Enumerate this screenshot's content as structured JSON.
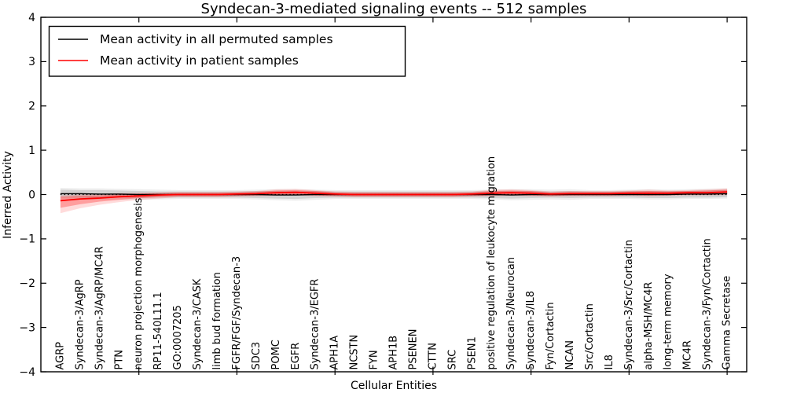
{
  "chart_data": {
    "type": "line",
    "title": "Syndecan-3-mediated signaling events -- 512 samples",
    "xlabel": "Cellular Entities",
    "ylabel": "Inferred Activity",
    "ylim": [
      -4,
      4
    ],
    "xlim": [
      0,
      36
    ],
    "yticks": [
      -4,
      -3,
      -2,
      -1,
      0,
      1,
      2,
      3,
      4
    ],
    "ytick_labels": [
      "−4",
      "−3",
      "−2",
      "−1",
      "0",
      "1",
      "2",
      "3",
      "4"
    ],
    "major_xticks": [
      5,
      10,
      15,
      20,
      25,
      30,
      35
    ],
    "grid": false,
    "legend_position": "upper left",
    "zero_line": {
      "y": 0,
      "style": "dotted",
      "color": "#000000"
    },
    "categories": [
      "AGRP",
      "Syndecan-3/AgRP",
      "Syndecan-3/AgRP/MC4R",
      "PTN",
      "neuron projection morphogenesis",
      "RP11-540L11.1",
      "GO:0007205",
      "Syndecan-3/CASK",
      "limb bud formation",
      "FGFR/FGF/Syndecan-3",
      "SDC3",
      "POMC",
      "EGFR",
      "Syndecan-3/EGFR",
      "APH1A",
      "NCSTN",
      "FYN",
      "APH1B",
      "PSENEN",
      "CTTN",
      "SRC",
      "PSEN1",
      "positive regulation of leukocyte migration",
      "Syndecan-3/Neurocan",
      "Syndecan-3/IL8",
      "Fyn/Cortactin",
      "NCAN",
      "Src/Cortactin",
      "IL8",
      "Syndecan-3/Src/Cortactin",
      "alpha-MSH/MC4R",
      "long-term memory",
      "MC4R",
      "Syndecan-3/Fyn/Cortactin",
      "Gamma Secretase"
    ],
    "series": [
      {
        "name": "Mean activity in all permuted samples",
        "color": "#000000",
        "values": [
          0.02,
          0.02,
          0.01,
          0.01,
          0.0,
          0.0,
          0.0,
          0.0,
          0.0,
          0.0,
          0.0,
          -0.01,
          -0.01,
          0.0,
          0.0,
          0.0,
          0.0,
          0.0,
          0.0,
          0.0,
          0.0,
          0.0,
          0.0,
          -0.01,
          0.0,
          0.0,
          0.0,
          0.0,
          0.0,
          0.0,
          0.0,
          0.0,
          0.01,
          0.01,
          0.02
        ],
        "band_inner": {
          "color": "#555555",
          "opacity": 0.18,
          "upper": [
            0.11,
            0.1,
            0.1,
            0.09,
            0.08,
            0.07,
            0.07,
            0.07,
            0.07,
            0.07,
            0.08,
            0.08,
            0.08,
            0.08,
            0.07,
            0.07,
            0.07,
            0.07,
            0.07,
            0.07,
            0.07,
            0.07,
            0.08,
            0.08,
            0.08,
            0.07,
            0.08,
            0.07,
            0.07,
            0.08,
            0.08,
            0.08,
            0.08,
            0.09,
            0.1
          ],
          "lower": [
            -0.07,
            -0.07,
            -0.08,
            -0.07,
            -0.08,
            -0.07,
            -0.07,
            -0.07,
            -0.07,
            -0.07,
            -0.08,
            -0.09,
            -0.1,
            -0.08,
            -0.07,
            -0.07,
            -0.07,
            -0.07,
            -0.07,
            -0.07,
            -0.07,
            -0.07,
            -0.08,
            -0.09,
            -0.08,
            -0.07,
            -0.08,
            -0.07,
            -0.07,
            -0.07,
            -0.08,
            -0.08,
            -0.07,
            -0.07,
            -0.06
          ]
        },
        "band_outer": {
          "color": "#555555",
          "opacity": 0.1,
          "upper": [
            0.15,
            0.14,
            0.14,
            0.13,
            0.12,
            0.11,
            0.1,
            0.1,
            0.1,
            0.1,
            0.11,
            0.12,
            0.12,
            0.11,
            0.1,
            0.1,
            0.1,
            0.1,
            0.1,
            0.1,
            0.1,
            0.1,
            0.11,
            0.12,
            0.12,
            0.11,
            0.12,
            0.1,
            0.1,
            0.11,
            0.12,
            0.11,
            0.12,
            0.13,
            0.14
          ],
          "lower": [
            -0.11,
            -0.11,
            -0.12,
            -0.11,
            -0.12,
            -0.11,
            -0.1,
            -0.1,
            -0.1,
            -0.1,
            -0.11,
            -0.13,
            -0.14,
            -0.12,
            -0.1,
            -0.1,
            -0.1,
            -0.1,
            -0.1,
            -0.1,
            -0.1,
            -0.1,
            -0.11,
            -0.13,
            -0.12,
            -0.11,
            -0.12,
            -0.1,
            -0.1,
            -0.1,
            -0.11,
            -0.11,
            -0.1,
            -0.1,
            -0.09
          ]
        }
      },
      {
        "name": "Mean activity in patient samples",
        "color": "#ff0000",
        "values": [
          -0.14,
          -0.1,
          -0.08,
          -0.05,
          -0.03,
          -0.01,
          0.0,
          0.0,
          0.0,
          0.01,
          0.02,
          0.04,
          0.05,
          0.03,
          0.01,
          0.0,
          0.0,
          0.0,
          0.0,
          0.0,
          0.0,
          0.01,
          0.03,
          0.04,
          0.03,
          0.01,
          0.02,
          0.02,
          0.02,
          0.03,
          0.03,
          0.03,
          0.04,
          0.04,
          0.06
        ],
        "band_inner": {
          "color": "#ff0000",
          "opacity": 0.28,
          "upper": [
            -0.05,
            -0.03,
            -0.02,
            0.0,
            0.02,
            0.03,
            0.04,
            0.04,
            0.04,
            0.05,
            0.06,
            0.09,
            0.1,
            0.08,
            0.05,
            0.04,
            0.04,
            0.04,
            0.04,
            0.04,
            0.04,
            0.05,
            0.08,
            0.09,
            0.08,
            0.05,
            0.06,
            0.06,
            0.06,
            0.07,
            0.08,
            0.07,
            0.08,
            0.09,
            0.11
          ],
          "lower": [
            -0.3,
            -0.22,
            -0.16,
            -0.12,
            -0.08,
            -0.06,
            -0.04,
            -0.04,
            -0.04,
            -0.03,
            -0.02,
            -0.01,
            0.0,
            -0.02,
            -0.03,
            -0.04,
            -0.04,
            -0.04,
            -0.04,
            -0.04,
            -0.04,
            -0.03,
            -0.02,
            -0.01,
            -0.02,
            -0.03,
            -0.02,
            -0.02,
            -0.02,
            -0.01,
            -0.02,
            -0.01,
            0.0,
            0.0,
            0.01
          ]
        },
        "band_outer": {
          "color": "#ff0000",
          "opacity": 0.14,
          "upper": [
            -0.02,
            0.0,
            0.01,
            0.03,
            0.04,
            0.05,
            0.06,
            0.06,
            0.06,
            0.07,
            0.08,
            0.12,
            0.13,
            0.1,
            0.07,
            0.06,
            0.06,
            0.06,
            0.06,
            0.06,
            0.06,
            0.07,
            0.11,
            0.12,
            0.1,
            0.07,
            0.08,
            0.08,
            0.08,
            0.09,
            0.11,
            0.09,
            0.1,
            0.12,
            0.14
          ],
          "lower": [
            -0.42,
            -0.31,
            -0.23,
            -0.17,
            -0.12,
            -0.09,
            -0.06,
            -0.06,
            -0.06,
            -0.05,
            -0.04,
            -0.03,
            -0.02,
            -0.04,
            -0.05,
            -0.06,
            -0.06,
            -0.06,
            -0.06,
            -0.06,
            -0.06,
            -0.05,
            -0.04,
            -0.03,
            -0.04,
            -0.05,
            -0.04,
            -0.04,
            -0.04,
            -0.03,
            -0.04,
            -0.03,
            -0.02,
            -0.02,
            -0.01
          ]
        }
      }
    ]
  }
}
